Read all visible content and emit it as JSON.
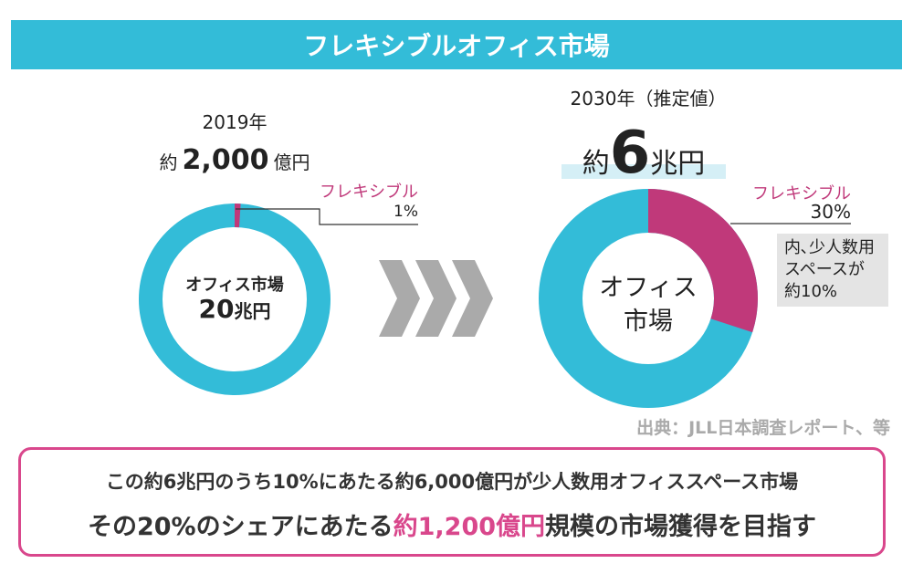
{
  "title": "フレキシブルオフィス市場",
  "left": {
    "year": "2019年",
    "approx": "約",
    "amount": "2,000",
    "unit": "億円",
    "flex_label": "フレキシブル",
    "flex_pct": "1%",
    "flex_value": 1,
    "center_line1": "オフィス市場",
    "center_num": "20",
    "center_unit": "兆円"
  },
  "right": {
    "year": "2030年（推定値）",
    "approx": "約",
    "amount": "6",
    "unit": "兆円",
    "flex_label": "フレキシブル",
    "flex_pct": "30%",
    "flex_value": 30,
    "center_line1": "オフィス",
    "center_line2": "市場",
    "note": [
      "内､少人数用",
      "スペースが",
      "約10%"
    ]
  },
  "source": "出典：JLL日本調査レポート、等",
  "summary": {
    "line1": "この約6兆円のうち10%にあたる約6,000億円が少人数用オフィススペース市場",
    "line2_pre": "その20%のシェアにあたる",
    "line2_highlight": "約1,200億円",
    "line2_post": "規模の市場獲得を目指す"
  },
  "colors": {
    "cyan": "#33bcd8",
    "pink": "#c0397a",
    "border": "#d9478c"
  }
}
